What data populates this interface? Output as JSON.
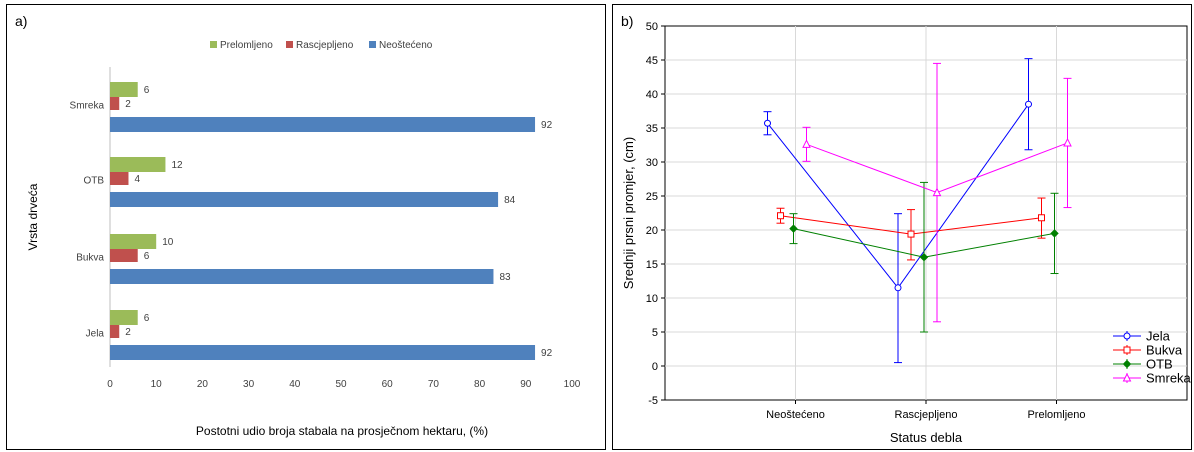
{
  "chart_data": [
    {
      "panel_label": "a)",
      "type": "bar",
      "orientation": "horizontal",
      "categories": [
        "Smreka",
        "OTB",
        "Bukva",
        "Jela"
      ],
      "series": [
        {
          "name": "Prelomljeno",
          "color": "#9BBB59",
          "values": [
            6,
            12,
            10,
            6
          ]
        },
        {
          "name": "Rascjepljeno",
          "color": "#C0504D",
          "values": [
            2,
            4,
            6,
            2
          ]
        },
        {
          "name": "Neoštećeno",
          "color": "#4F81BD",
          "values": [
            92,
            84,
            83,
            92
          ]
        }
      ],
      "xlabel": "Postotni udio broja stabala na prosječnom hektaru, (%)",
      "ylabel": "Vrsta drveća",
      "xlim": [
        0,
        100
      ],
      "xticks": [
        0,
        10,
        20,
        30,
        40,
        50,
        60,
        70,
        80,
        90,
        100
      ],
      "legend_position": "top",
      "grid": false
    },
    {
      "panel_label": "b)",
      "type": "line",
      "categories": [
        "Neoštećeno",
        "Rascjepljeno",
        "Prelomljeno"
      ],
      "series": [
        {
          "name": "Jela",
          "color": "#0000FF",
          "marker": "circle",
          "values": [
            35.7,
            11.5,
            38.5
          ],
          "err_low": [
            34.0,
            0.5,
            31.8
          ],
          "err_high": [
            37.4,
            22.4,
            45.2
          ]
        },
        {
          "name": "Bukva",
          "color": "#FF0000",
          "marker": "square",
          "values": [
            22.1,
            19.4,
            21.8
          ],
          "err_low": [
            21.0,
            15.6,
            18.8
          ],
          "err_high": [
            23.2,
            23.0,
            24.7
          ]
        },
        {
          "name": "OTB",
          "color": "#008000",
          "marker": "diamond",
          "values": [
            20.2,
            16.0,
            19.5
          ],
          "err_low": [
            18.0,
            5.0,
            13.6
          ],
          "err_high": [
            22.4,
            27.0,
            25.4
          ]
        },
        {
          "name": "Smreka",
          "color": "#FF00FF",
          "marker": "triangle",
          "values": [
            32.6,
            25.5,
            32.8
          ],
          "err_low": [
            30.1,
            6.5,
            23.3
          ],
          "err_high": [
            35.1,
            44.5,
            42.3
          ]
        }
      ],
      "xlabel": "Status debla",
      "ylabel": "Srednji prsni promjer, (cm)",
      "ylim": [
        -5,
        50
      ],
      "yticks": [
        -5,
        0,
        5,
        10,
        15,
        20,
        25,
        30,
        35,
        40,
        45,
        50
      ],
      "legend_position": "bottom-right",
      "grid": true
    }
  ]
}
